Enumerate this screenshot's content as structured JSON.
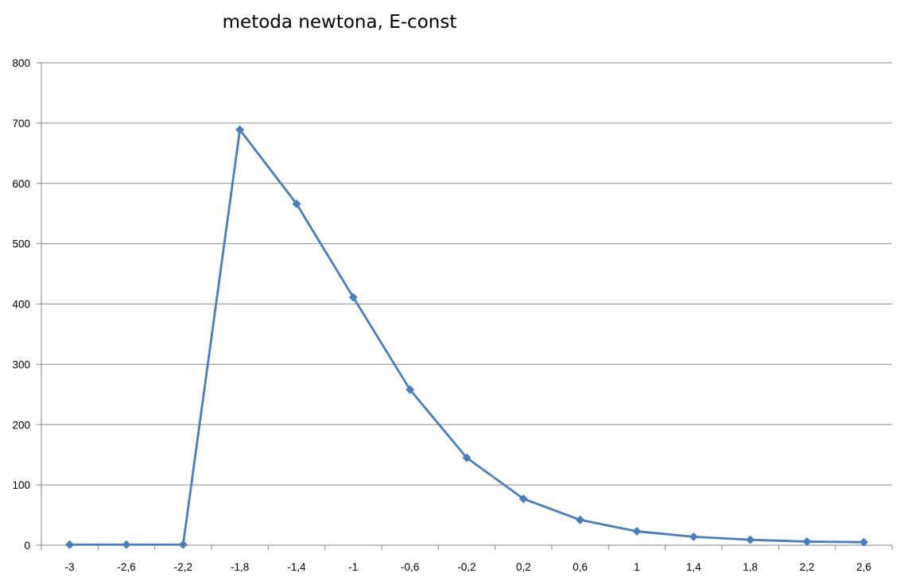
{
  "chart_data": {
    "type": "line",
    "title": "metoda newtona, E-const",
    "xlabel": "",
    "ylabel": "",
    "categories": [
      "-3",
      "-2,6",
      "-2,2",
      "-1,8",
      "-1,4",
      "-1",
      "-0,6",
      "-0,2",
      "0,2",
      "0,6",
      "1",
      "1,4",
      "1,8",
      "2,2",
      "2,6"
    ],
    "series": [
      {
        "values": [
          1,
          1,
          1,
          689,
          566,
          411,
          258,
          145,
          77,
          42,
          23,
          14,
          9,
          6,
          5
        ]
      }
    ],
    "ylim": [
      0,
      800
    ],
    "yticks": [
      "0",
      "100",
      "200",
      "300",
      "400",
      "500",
      "600",
      "700",
      "800"
    ],
    "grid": "horizontal",
    "legend": "none",
    "colors": {
      "series": "#4a7ebb",
      "grid": "#8c8c8c",
      "axis": "#868686",
      "text": "#000000"
    },
    "marker": "diamond"
  }
}
